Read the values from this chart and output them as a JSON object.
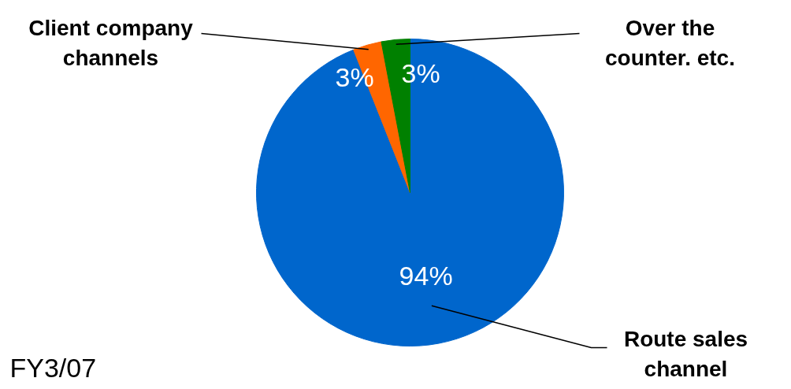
{
  "chart_data": {
    "type": "pie",
    "categories": [
      "Route sales channel",
      "Client company channels",
      "Over the counter. etc."
    ],
    "values": [
      94,
      3,
      3
    ],
    "colors": [
      "#0066cc",
      "#ff6600",
      "#008000"
    ],
    "value_labels": [
      "94%",
      "3%",
      "3%"
    ],
    "annotations": [
      "FY3/07"
    ]
  }
}
